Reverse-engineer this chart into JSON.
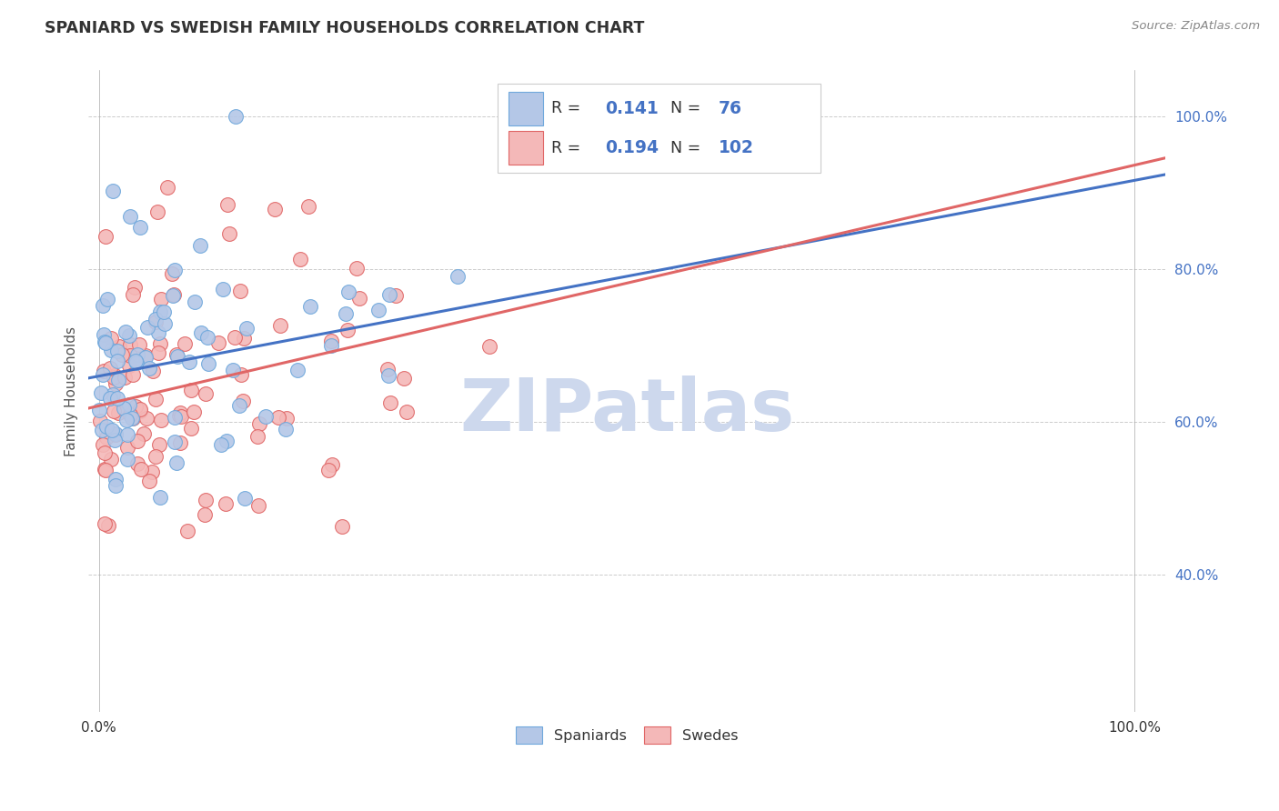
{
  "title": "SPANIARD VS SWEDISH FAMILY HOUSEHOLDS CORRELATION CHART",
  "source": "Source: ZipAtlas.com",
  "ylabel": "Family Households",
  "ytick_vals": [
    0.4,
    0.6,
    0.8,
    1.0
  ],
  "ytick_labels": [
    "40.0%",
    "60.0%",
    "80.0%",
    "100.0%"
  ],
  "xtick_vals": [
    0.0,
    1.0
  ],
  "xtick_labels": [
    "0.0%",
    "100.0%"
  ],
  "spaniard_edge_color": "#6fa8dc",
  "spaniard_face_color": "#b4c7e7",
  "swede_edge_color": "#e06666",
  "swede_face_color": "#f4b8b8",
  "legend_R_color": "#4472c4",
  "legend_box_border": "#cccccc",
  "line_spaniard_color": "#4472c4",
  "line_swede_color": "#e06666",
  "background_color": "#ffffff",
  "grid_color": "#cccccc",
  "watermark_text": "ZIPatlas",
  "watermark_color": "#cdd8ed",
  "title_color": "#333333",
  "source_color": "#888888",
  "ylabel_color": "#555555",
  "ytick_color": "#4472c4",
  "xtick_color": "#333333",
  "R_spaniard": "0.141",
  "N_spaniard": "76",
  "R_swede": "0.194",
  "N_swede": "102",
  "legend_label_spaniard": "Spaniards",
  "legend_label_swede": "Swedes",
  "xlim": [
    -0.01,
    1.03
  ],
  "ylim": [
    0.22,
    1.06
  ]
}
